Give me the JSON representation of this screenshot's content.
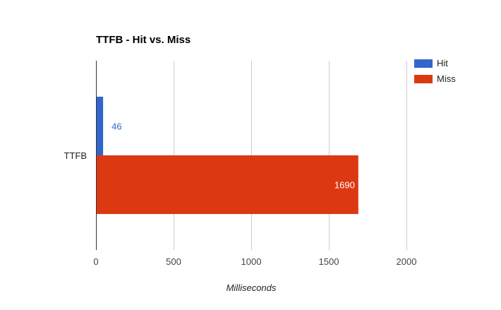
{
  "chart_data": {
    "type": "bar",
    "orientation": "horizontal",
    "title": "TTFB - Hit vs. Miss",
    "xlabel": "Milliseconds",
    "ylabel": "",
    "categories": [
      "TTFB"
    ],
    "series": [
      {
        "name": "Hit",
        "values": [
          46
        ],
        "color": "#3366cc",
        "label_color": "#3366cc"
      },
      {
        "name": "Miss",
        "values": [
          1690
        ],
        "color": "#dc3912",
        "label_color": "#ffffff"
      }
    ],
    "xlim": [
      0,
      2000
    ],
    "xticks": [
      0,
      500,
      1000,
      1500,
      2000
    ],
    "grid": true,
    "legend_position": "right"
  }
}
